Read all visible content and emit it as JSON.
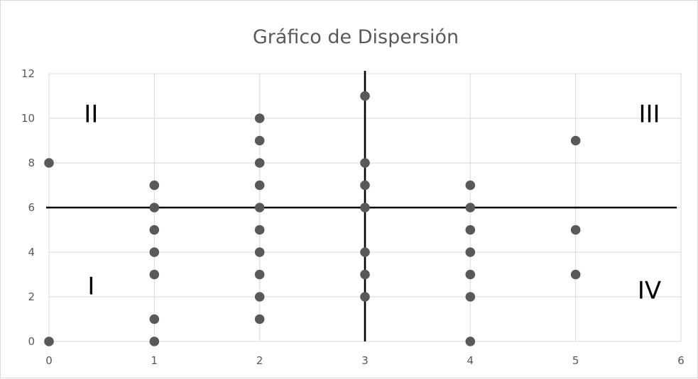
{
  "chart_data": {
    "type": "scatter",
    "title": "Gráfico de Dispersión",
    "xlabel": "",
    "ylabel": "",
    "xlim": [
      0,
      6
    ],
    "ylim": [
      0,
      12
    ],
    "x_ticks": [
      "0",
      "1",
      "2",
      "3",
      "4",
      "5",
      "6"
    ],
    "y_ticks": [
      "0",
      "2",
      "4",
      "6",
      "8",
      "10",
      "12"
    ],
    "grid": true,
    "legend": "none",
    "marker_color": "#595959",
    "reference_lines": [
      {
        "axis": "x",
        "value": 3,
        "color": "#000000"
      },
      {
        "axis": "y",
        "value": 6,
        "color": "#000000"
      }
    ],
    "quadrant_labels": [
      {
        "text": "II",
        "x": 0.4,
        "y": 10.2
      },
      {
        "text": "III",
        "x": 5.7,
        "y": 10.2
      },
      {
        "text": "I",
        "x": 0.4,
        "y": 2.5
      },
      {
        "text": "IV",
        "x": 5.7,
        "y": 2.3
      }
    ],
    "points": [
      {
        "x": 0,
        "y": 8
      },
      {
        "x": 0,
        "y": 0
      },
      {
        "x": 1,
        "y": 7
      },
      {
        "x": 1,
        "y": 6
      },
      {
        "x": 1,
        "y": 5
      },
      {
        "x": 1,
        "y": 4
      },
      {
        "x": 1,
        "y": 3
      },
      {
        "x": 1,
        "y": 1
      },
      {
        "x": 1,
        "y": 0
      },
      {
        "x": 2,
        "y": 10
      },
      {
        "x": 2,
        "y": 9
      },
      {
        "x": 2,
        "y": 8
      },
      {
        "x": 2,
        "y": 7
      },
      {
        "x": 2,
        "y": 6
      },
      {
        "x": 2,
        "y": 5
      },
      {
        "x": 2,
        "y": 4
      },
      {
        "x": 2,
        "y": 3
      },
      {
        "x": 2,
        "y": 2
      },
      {
        "x": 2,
        "y": 1
      },
      {
        "x": 3,
        "y": 11
      },
      {
        "x": 3,
        "y": 8
      },
      {
        "x": 3,
        "y": 7
      },
      {
        "x": 3,
        "y": 6
      },
      {
        "x": 3,
        "y": 4
      },
      {
        "x": 3,
        "y": 3
      },
      {
        "x": 3,
        "y": 2
      },
      {
        "x": 4,
        "y": 7
      },
      {
        "x": 4,
        "y": 6
      },
      {
        "x": 4,
        "y": 5
      },
      {
        "x": 4,
        "y": 4
      },
      {
        "x": 4,
        "y": 3
      },
      {
        "x": 4,
        "y": 2
      },
      {
        "x": 4,
        "y": 0
      },
      {
        "x": 5,
        "y": 9
      },
      {
        "x": 5,
        "y": 5
      },
      {
        "x": 5,
        "y": 3
      }
    ]
  }
}
